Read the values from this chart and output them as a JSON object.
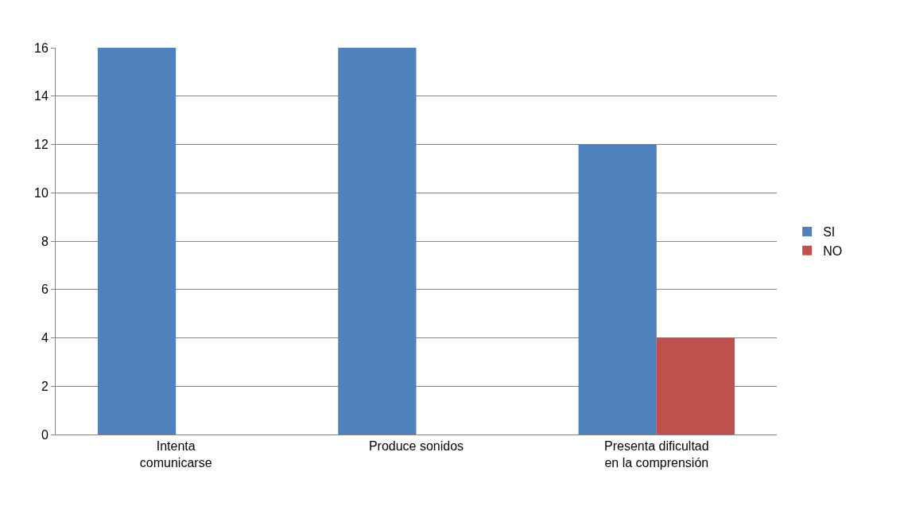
{
  "chart_data": {
    "type": "bar",
    "categories": [
      "Intenta comunicarse",
      "Produce sonidos",
      "Presenta dificultad en la comprensión"
    ],
    "series": [
      {
        "name": "SI",
        "color": "#4f81bd",
        "values": [
          16,
          16,
          12
        ]
      },
      {
        "name": "NO",
        "color": "#c0504d",
        "values": [
          0,
          0,
          4
        ]
      }
    ],
    "ylim": [
      0,
      16
    ],
    "yticks": [
      0,
      2,
      4,
      6,
      8,
      10,
      12,
      14,
      16
    ],
    "grid": "y",
    "legend": "right"
  }
}
